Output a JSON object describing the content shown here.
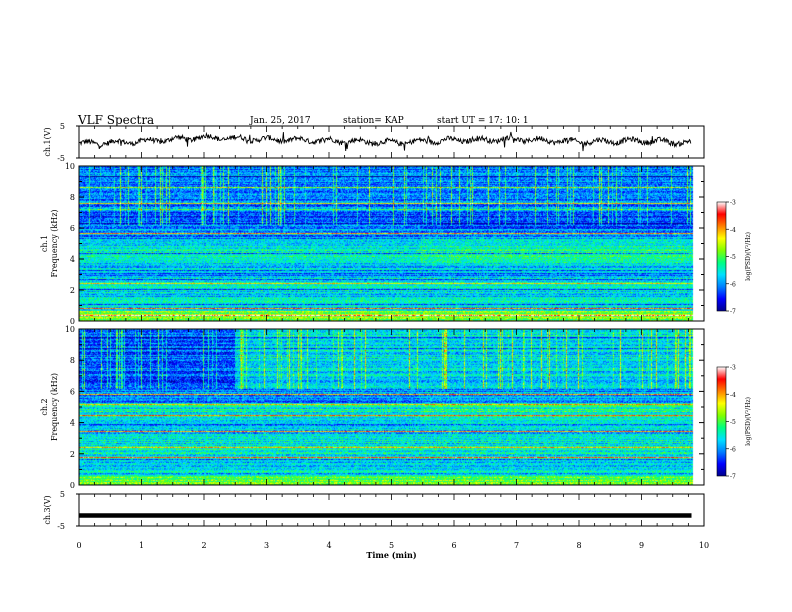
{
  "header": {
    "title": "VLF Spectra",
    "date": "Jan. 25, 2017",
    "station": "station= KAP",
    "start_ut": "start  UT =   17: 10: 1"
  },
  "chart_data": [
    {
      "type": "line",
      "panel": "ch1-waveform",
      "title": "",
      "xlabel": "",
      "ylabel": "ch.1(V)",
      "xlim": [
        0,
        10
      ],
      "ylim": [
        -5,
        5
      ],
      "y_ticks": [
        "5",
        "-5"
      ],
      "series": [
        {
          "values_description": "noise-like trace",
          "x": [
            0,
            1,
            2,
            3,
            4,
            5,
            6,
            7,
            8,
            9,
            9.8
          ],
          "y": [
            -0.5,
            0.2,
            1.5,
            0.8,
            0.5,
            -0.2,
            0.6,
            0.9,
            0.1,
            0.4,
            -0.3
          ]
        }
      ],
      "grid": false
    },
    {
      "type": "heatmap",
      "panel": "ch1-spectrogram",
      "ylabel": "ch.1\nFrequency (kHz)",
      "xlim": [
        0,
        10
      ],
      "ylim": [
        0,
        10
      ],
      "y_ticks": [
        "0",
        "2",
        "4",
        "6",
        "8",
        "10"
      ],
      "colorbar": {
        "label": "log(PSD)(V²/Hz)",
        "range": [
          -7,
          -3
        ],
        "ticks": [
          "-3",
          "-4",
          "-5",
          "-6",
          "-7"
        ]
      },
      "step_time_min": 5.45
    },
    {
      "type": "heatmap",
      "panel": "ch2-spectrogram",
      "ylabel": "ch.2\nFrequency (kHz)",
      "xlim": [
        0,
        10
      ],
      "ylim": [
        0,
        10
      ],
      "y_ticks": [
        "0",
        "2",
        "4",
        "6",
        "8",
        "10"
      ],
      "colorbar": {
        "label": "log(PSD)(V²/Hz)",
        "range": [
          -7,
          -3
        ],
        "ticks": [
          "-3",
          "-4",
          "-5",
          "-6",
          "-7"
        ]
      },
      "step_time_min": [
        2.5,
        5.45
      ]
    },
    {
      "type": "line",
      "panel": "ch3-waveform",
      "ylabel": "ch.3(V)",
      "xlim": [
        0,
        10
      ],
      "ylim": [
        -5,
        5
      ],
      "y_ticks": [
        "5",
        "-5"
      ],
      "series": [
        {
          "x": [
            0,
            9.8
          ],
          "y": [
            -1.7,
            -1.7
          ]
        }
      ]
    }
  ],
  "x_axis": {
    "label": "Time (min)",
    "ticks": [
      "0",
      "1",
      "2",
      "3",
      "4",
      "5",
      "6",
      "7",
      "8",
      "9",
      "10"
    ]
  },
  "colors": {
    "colormap": [
      "#00008c",
      "#0000ff",
      "#0080ff",
      "#00e0ff",
      "#00ff80",
      "#80ff00",
      "#ffff00",
      "#ff8000",
      "#ff0000",
      "#ffffff"
    ],
    "trace": "#000000"
  }
}
